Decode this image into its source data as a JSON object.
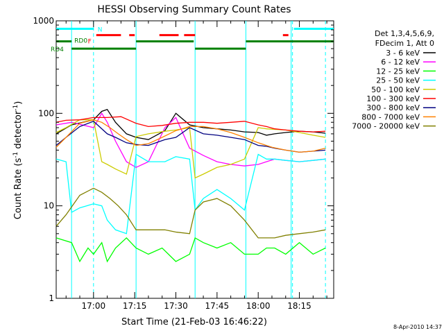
{
  "chart_data": {
    "type": "line",
    "title": "HESSI Observing Summary Count Rates",
    "xlabel": "Start Time (21-Feb-03 16:46:22)",
    "ylabel_main": "Count Rate (s",
    "ylabel_sup1": "-1",
    "ylabel_mid": " detector",
    "ylabel_sup2": "-1",
    "ylabel_end": ")",
    "y_scale": "log",
    "ylim": [
      1,
      1000
    ],
    "xlim_minutes": [
      -13.6,
      87.5
    ],
    "x_ticks": [
      {
        "min": 0,
        "label": "17:00"
      },
      {
        "min": 15,
        "label": "17:15"
      },
      {
        "min": 30,
        "label": "17:30"
      },
      {
        "min": 45,
        "label": "17:45"
      },
      {
        "min": 60,
        "label": "18:00"
      },
      {
        "min": 75,
        "label": "18:15"
      }
    ],
    "y_ticks": [
      {
        "value": 1,
        "label": "1"
      },
      {
        "value": 10,
        "label": "10"
      },
      {
        "value": 100,
        "label": "100"
      },
      {
        "value": 1000,
        "label": "1000"
      }
    ],
    "legend_header": [
      "Det 1,3,4,5,6,9,",
      "FDecim 1, Att 0"
    ],
    "legend_placement": "right",
    "timestamp": "8-Apr-2010 14:37",
    "series": [
      {
        "name": "3 - 6 keV",
        "color": "#000000",
        "x": [
          -13.6,
          -8,
          0,
          3,
          5,
          8,
          12,
          15.5,
          20,
          26,
          30,
          35,
          40,
          45,
          50,
          55,
          60,
          63,
          66,
          70,
          75,
          80,
          84.5
        ],
        "y": [
          60,
          75,
          85,
          105,
          110,
          80,
          60,
          55,
          52,
          65,
          100,
          75,
          70,
          68,
          66,
          63,
          62,
          58,
          60,
          62,
          64,
          63,
          61
        ]
      },
      {
        "name": "6 - 12 keV",
        "color": "#ff00ff",
        "x": [
          -13.6,
          -8,
          0,
          3,
          5,
          8,
          12,
          15.5,
          20,
          26,
          30,
          35,
          40,
          45,
          50,
          55,
          60,
          63,
          66,
          70,
          75,
          80,
          84.5
        ],
        "y": [
          75,
          80,
          70,
          100,
          80,
          50,
          30,
          26,
          30,
          70,
          90,
          42,
          35,
          30,
          28,
          27,
          28,
          30,
          32,
          31,
          30,
          31,
          32
        ]
      },
      {
        "name": "12 - 25 keV",
        "color": "#00ff00",
        "x": [
          -13.6,
          -8,
          -5,
          -2,
          0,
          3,
          5,
          8,
          12,
          15.5,
          20,
          25,
          30,
          35,
          37,
          40,
          45,
          50,
          55,
          60,
          63,
          66,
          70,
          75,
          80,
          84.5
        ],
        "y": [
          4.5,
          4.0,
          2.5,
          3.5,
          3.0,
          4.0,
          2.5,
          3.5,
          4.5,
          3.5,
          3.0,
          3.5,
          2.5,
          3.0,
          4.5,
          4.0,
          3.5,
          4.0,
          3.0,
          3.0,
          3.5,
          3.5,
          3.0,
          4.0,
          3.0,
          3.5
        ]
      },
      {
        "name": "25 - 50 keV",
        "color": "#00ffff",
        "x": [
          -13.6,
          -10,
          -8,
          -5,
          0,
          3,
          5,
          8,
          12,
          15.5,
          20,
          26,
          30,
          35,
          37,
          40,
          45,
          50,
          55,
          60,
          63,
          66,
          70,
          75,
          80,
          84.5
        ],
        "y": [
          32,
          30,
          8.5,
          9.5,
          10.5,
          10,
          7,
          5.5,
          5,
          36,
          30,
          30,
          34,
          32,
          9,
          12,
          15,
          12,
          9,
          36,
          32,
          32,
          31,
          30,
          31,
          32
        ]
      },
      {
        "name": "50 - 100 keV",
        "color": "#cccc00",
        "x": [
          -13.6,
          -10,
          -5,
          0,
          3,
          5,
          8,
          12,
          15.5,
          20,
          26,
          30,
          35,
          37,
          40,
          45,
          50,
          55,
          60,
          63,
          66,
          70,
          75,
          80,
          84.5
        ],
        "y": [
          62,
          70,
          85,
          85,
          30,
          28,
          25,
          22,
          56,
          60,
          64,
          66,
          70,
          20,
          22,
          26,
          28,
          32,
          70,
          68,
          67,
          66,
          62,
          58,
          55
        ]
      },
      {
        "name": "100 - 300 keV",
        "color": "#ff0000",
        "x": [
          -13.6,
          -10,
          -5,
          0,
          5,
          10,
          15.5,
          20,
          25,
          30,
          35,
          40,
          45,
          50,
          55,
          60,
          63,
          66,
          70,
          75,
          80,
          84.5
        ],
        "y": [
          80,
          84,
          85,
          90,
          90,
          92,
          78,
          72,
          74,
          78,
          80,
          80,
          78,
          80,
          82,
          75,
          72,
          68,
          66,
          64,
          63,
          64
        ]
      },
      {
        "name": "300 - 800 keV",
        "color": "#000080",
        "x": [
          -13.6,
          -10,
          -5,
          0,
          5,
          8,
          12,
          15.5,
          20,
          26,
          30,
          35,
          40,
          45,
          50,
          55,
          60,
          63,
          66,
          70,
          75,
          80,
          84.5
        ],
        "y": [
          45,
          55,
          72,
          82,
          60,
          55,
          48,
          46,
          45,
          52,
          55,
          70,
          60,
          58,
          55,
          52,
          45,
          44,
          42,
          40,
          38,
          39,
          40
        ]
      },
      {
        "name": "800 - 7000 keV",
        "color": "#ff8000",
        "x": [
          -13.6,
          -10,
          -5,
          0,
          3,
          6,
          9,
          12,
          15.5,
          20,
          25,
          30,
          35,
          40,
          45,
          50,
          55,
          60,
          65,
          70,
          75,
          80,
          84.5
        ],
        "y": [
          43,
          55,
          78,
          85,
          80,
          70,
          60,
          52,
          45,
          47,
          55,
          65,
          72,
          72,
          68,
          62,
          55,
          48,
          43,
          40,
          38,
          39,
          42
        ]
      },
      {
        "name": "7000 - 20000 keV",
        "color": "#808000",
        "x": [
          -13.6,
          -10,
          -5,
          0,
          3,
          6,
          9,
          12,
          15.5,
          20,
          26,
          30,
          35,
          37,
          40,
          45,
          50,
          55,
          60,
          63,
          66,
          70,
          75,
          80,
          84.5
        ],
        "y": [
          6,
          8,
          13,
          15.5,
          14,
          12,
          10,
          8,
          5.5,
          5.5,
          5.5,
          5.2,
          5,
          9,
          11,
          12,
          10,
          7,
          4.5,
          4.5,
          4.5,
          4.8,
          5,
          5.2,
          5.5
        ]
      }
    ],
    "flags": [
      {
        "label": "N",
        "color": "#00ffff",
        "y": 820,
        "segments": [
          [
            -13.6,
            0
          ],
          [
            73,
            87.5
          ]
        ]
      },
      {
        "label": "F",
        "color": "#ff0000",
        "y": 700,
        "segments": [
          [
            1,
            10
          ],
          [
            13,
            15
          ],
          [
            24,
            31
          ],
          [
            33,
            37
          ],
          [
            69,
            71
          ]
        ]
      },
      {
        "label": "RD0",
        "color": "#008000",
        "y": 600,
        "segments": [
          [
            -13.6,
            -8
          ],
          [
            15.5,
            36.5
          ],
          [
            55.5,
            87.5
          ]
        ]
      },
      {
        "label": "RD4",
        "color": "#008000",
        "y": 500,
        "segments": [
          [
            -8,
            15.5
          ],
          [
            37,
            55.5
          ]
        ]
      }
    ],
    "night_lines_solid": [
      -8,
      15.5,
      37,
      55.5,
      72
    ],
    "night_lines_dashed": [
      0,
      72.5,
      84.5
    ]
  }
}
